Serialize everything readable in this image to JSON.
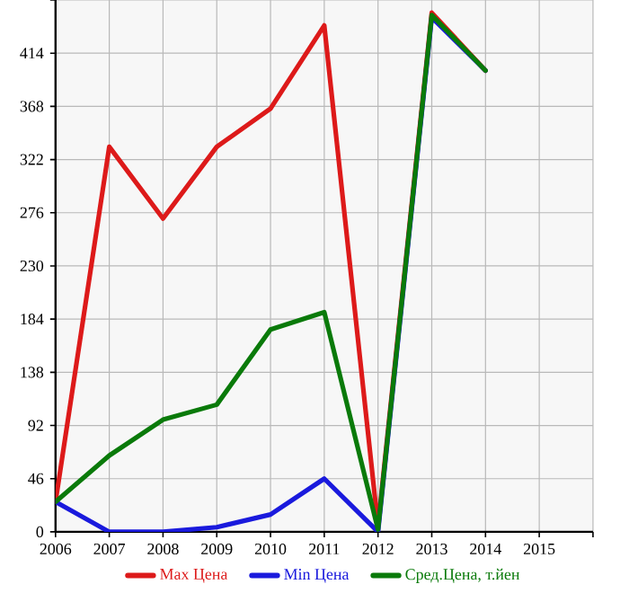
{
  "chart_data": {
    "type": "line",
    "x": [
      2006,
      2007,
      2008,
      2009,
      2010,
      2011,
      2012,
      2013,
      2014
    ],
    "series": [
      {
        "name": "Max Цена",
        "color": "#dd1a1a",
        "values": [
          26,
          333,
          271,
          333,
          366,
          438,
          5,
          449,
          399
        ]
      },
      {
        "name": "Min Цена",
        "color": "#1a1add",
        "values": [
          26,
          0,
          0,
          4,
          15,
          46,
          0,
          445,
          399
        ]
      },
      {
        "name": "Сред.Цена, т.йен",
        "color": "#0a7a0a",
        "values": [
          26,
          66,
          97,
          110,
          175,
          190,
          2,
          447,
          399
        ]
      }
    ],
    "xlim": [
      2006,
      2016
    ],
    "xticks": [
      2006,
      2007,
      2008,
      2009,
      2010,
      2011,
      2012,
      2013,
      2014,
      2015,
      {
        "value": 2016,
        "label": null
      }
    ],
    "ylim": [
      0,
      460
    ],
    "yticks": [
      0,
      46,
      92,
      138,
      184,
      230,
      276,
      322,
      368,
      414,
      {
        "value": 460,
        "label": null
      }
    ],
    "grid": true,
    "legend": "bottom",
    "marker": "none",
    "line_style": "solid"
  }
}
